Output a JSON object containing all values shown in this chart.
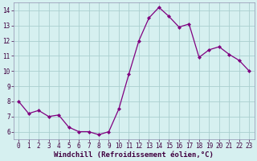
{
  "x": [
    0,
    1,
    2,
    3,
    4,
    5,
    6,
    7,
    8,
    9,
    10,
    11,
    12,
    13,
    14,
    15,
    16,
    17,
    18,
    19,
    20,
    21,
    22,
    23
  ],
  "y": [
    8.0,
    7.2,
    7.4,
    7.0,
    7.1,
    6.3,
    6.0,
    6.0,
    5.8,
    6.0,
    7.5,
    9.8,
    12.0,
    13.5,
    14.2,
    13.6,
    12.9,
    13.1,
    10.9,
    11.4,
    11.6,
    11.1,
    10.7,
    10.0
  ],
  "line_color": "#800080",
  "marker": "D",
  "marker_size": 2.0,
  "bg_color": "#d6f0f0",
  "grid_color": "#aacfcf",
  "xlabel": "Windchill (Refroidissement éolien,°C)",
  "xlabel_fontsize": 6.5,
  "tick_fontsize": 5.5,
  "ylim": [
    5.5,
    14.5
  ],
  "yticks": [
    6,
    7,
    8,
    9,
    10,
    11,
    12,
    13,
    14
  ],
  "xlim": [
    -0.5,
    23.5
  ],
  "xticks": [
    0,
    1,
    2,
    3,
    4,
    5,
    6,
    7,
    8,
    9,
    10,
    11,
    12,
    13,
    14,
    15,
    16,
    17,
    18,
    19,
    20,
    21,
    22,
    23
  ],
  "spine_color": "#9090b0",
  "line_width": 0.9
}
